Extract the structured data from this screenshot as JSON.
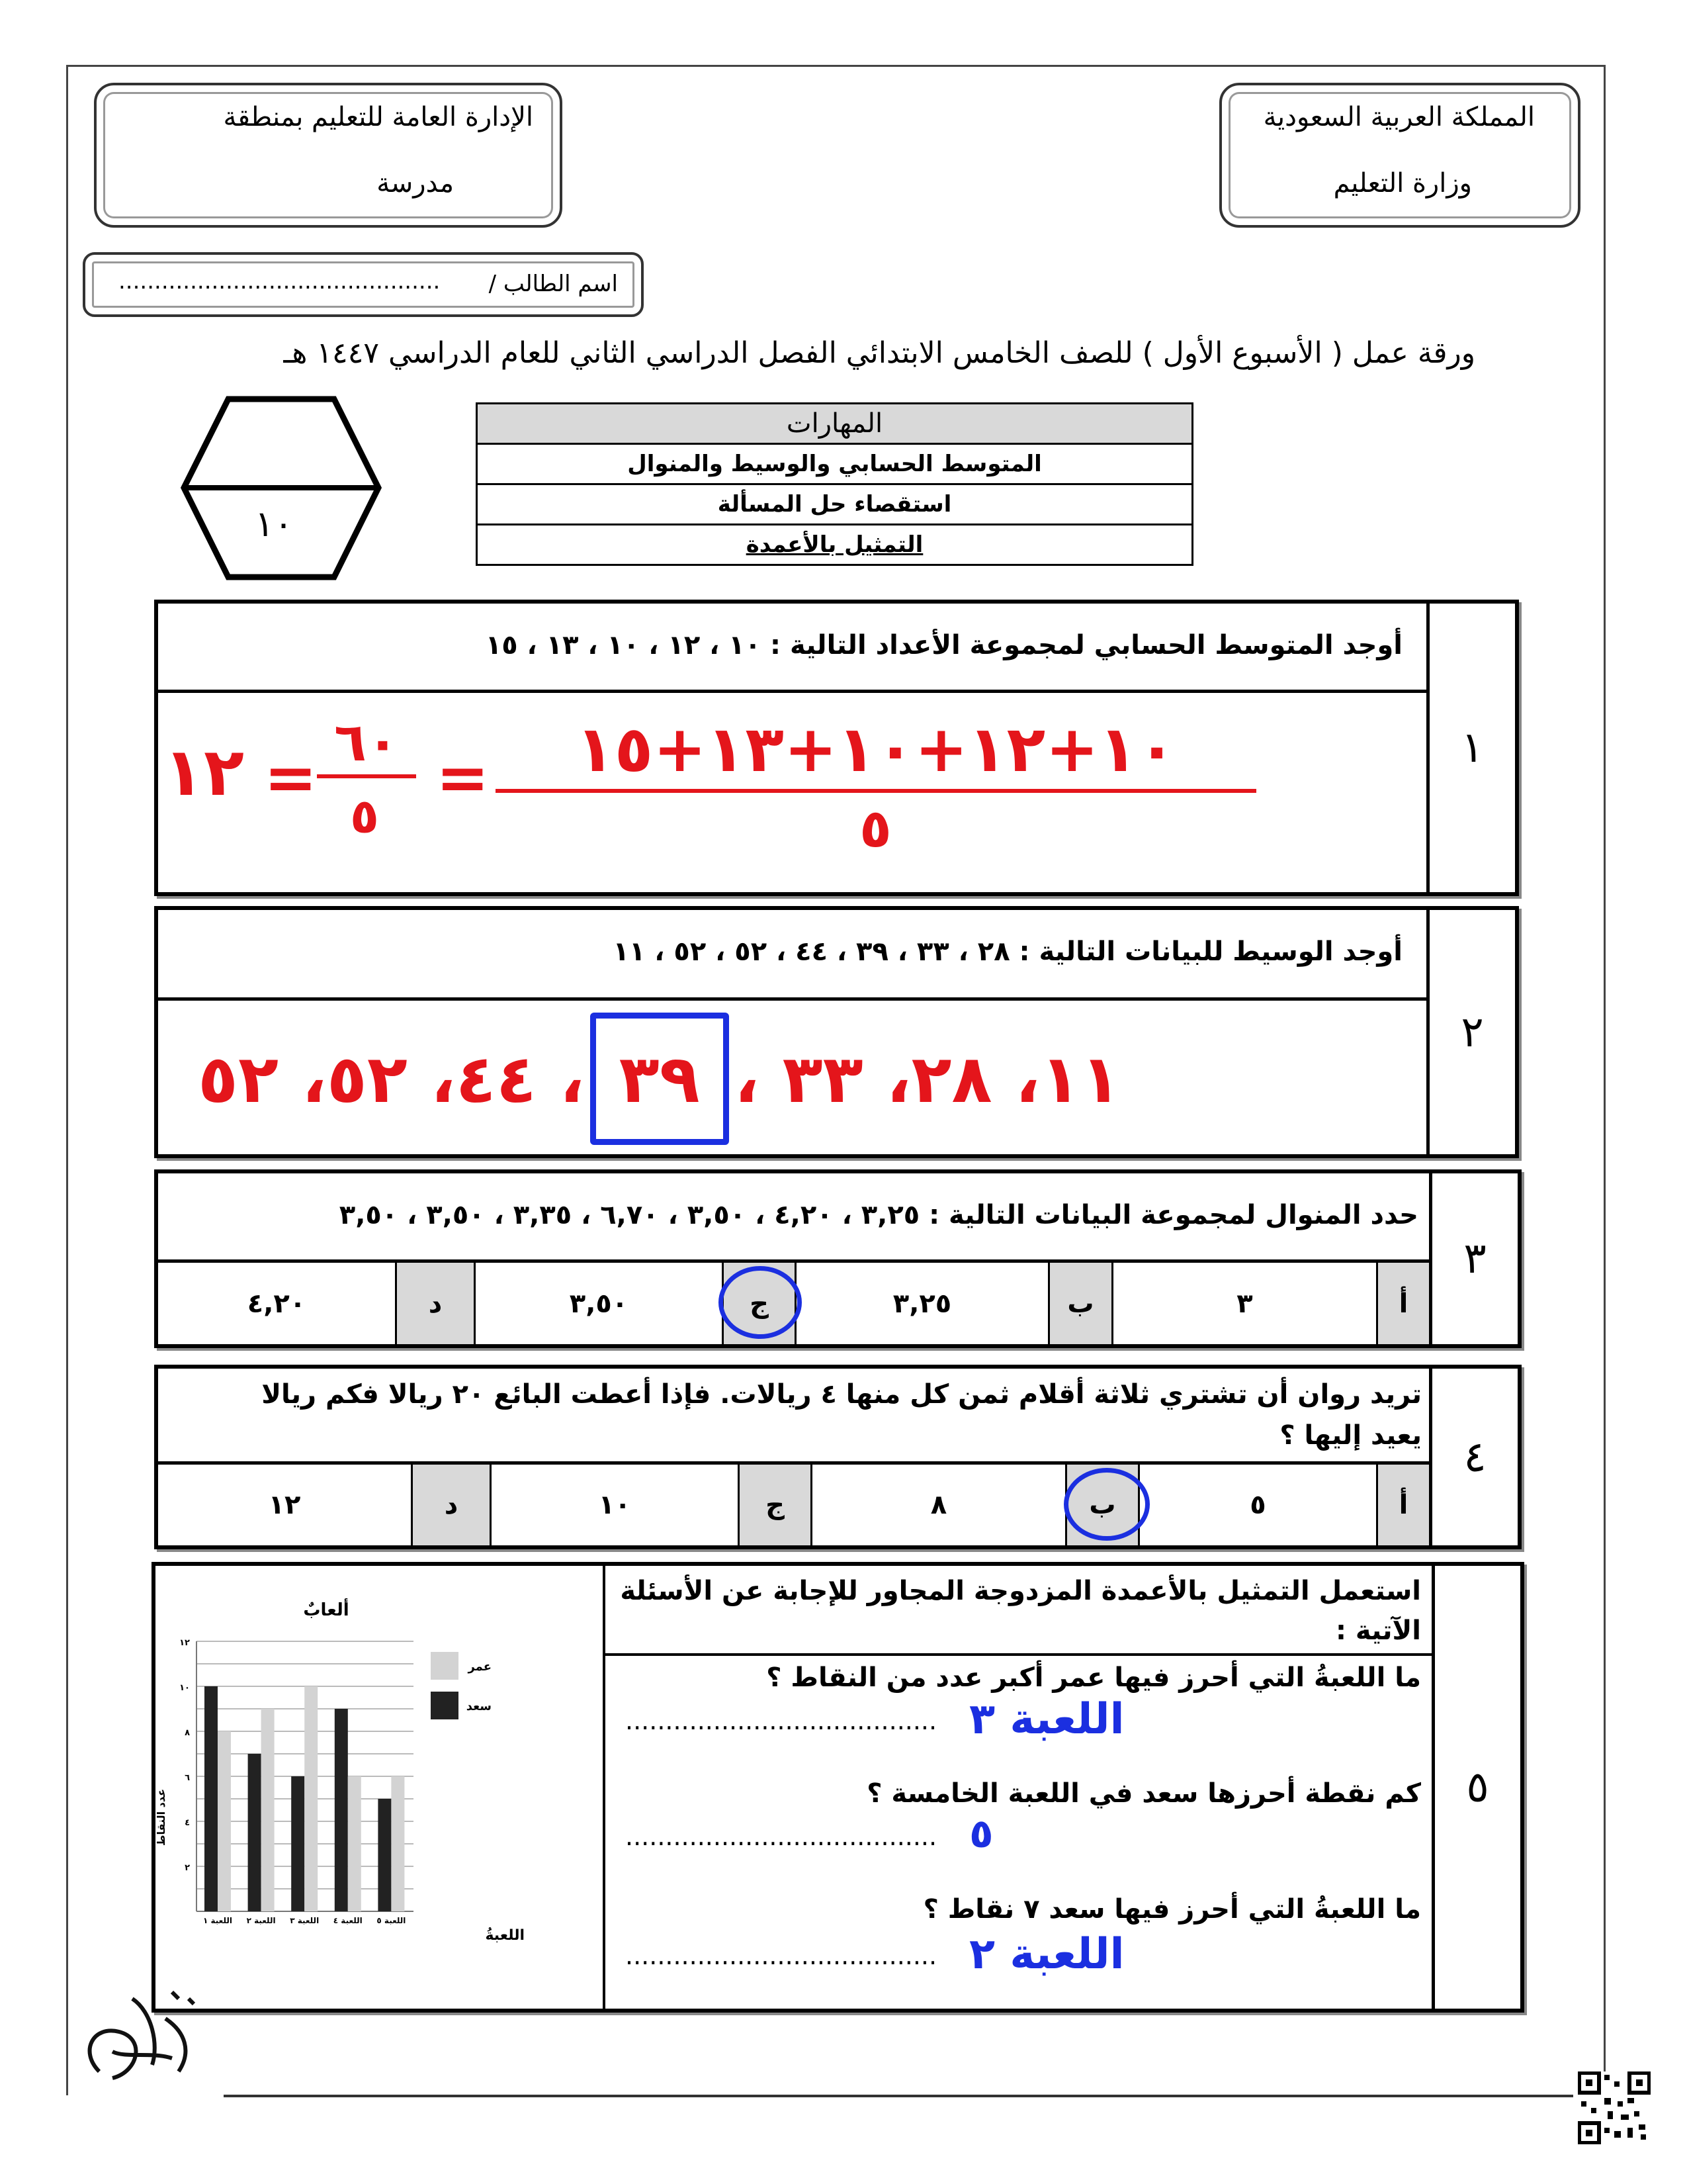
{
  "header": {
    "kingdom": "المملكة العربية السعودية",
    "ministry": "وزارة التعليم",
    "directorate": "الإدارة العامة للتعليم بمنطقة",
    "school": "مدرسة",
    "student_name_label": "اسم الطالب /",
    "student_name_dots": "............................................."
  },
  "title": "ورقة عمل ( الأسبوع الأول ) للصف الخامس الابتدائي الفصل الدراسي الثاني للعام الدراسي ١٤٤٧ هـ",
  "score": "١٠",
  "skills": {
    "header": "المهارات",
    "items": [
      "المتوسط الحسابي والوسيط والمنوال",
      "استقصاء حل المسألة",
      "التمثيل بالأعمدة"
    ]
  },
  "q1": {
    "num": "١",
    "text": "أوجد المتوسط الحسابي لمجموعة الأعداد التالية :  ١٠ ، ١٢ ، ١٠ ، ١٣ ، ١٥",
    "answer": {
      "numerator": "١٠+١٢+١٠+١٣+١٥",
      "denominator": "٥",
      "step_num": "٦٠",
      "step_den": "٥",
      "result": "١٢"
    }
  },
  "q2": {
    "num": "٢",
    "text": "أوجد الوسيط للبيانات التالية :   ٢٨ ، ٣٣ ، ٣٩ ، ٤٤ ، ٥٢ ، ٥٢ ، ١١",
    "answer": {
      "before": "١١، ٢٨، ٣٣ ،",
      "median": "٣٩",
      "after": "، ٤٤، ٥٢، ٥٢"
    }
  },
  "q3": {
    "num": "٣",
    "text": "حدد المنوال لمجموعة البيانات التالية : ٣,٢٥ ، ٤,٢٠ ، ٣,٥٠ ، ٦,٧٠ ، ٣,٣٥ ، ٣,٥٠ ، ٣,٥٠",
    "options": [
      {
        "letter": "أ",
        "value": "٣"
      },
      {
        "letter": "ب",
        "value": "٣,٢٥"
      },
      {
        "letter": "ج",
        "value": "٣,٥٠",
        "circled": true
      },
      {
        "letter": "د",
        "value": "٤,٢٠"
      }
    ]
  },
  "q4": {
    "num": "٤",
    "text": "تريد روان أن تشتري ثلاثة أقلام ثمن كل منها ٤ ريالات. فإذا أعطت البائع ٢٠ ريالا فكم ريالا يعيد إليها ؟",
    "options": [
      {
        "letter": "أ",
        "value": "٥"
      },
      {
        "letter": "ب",
        "value": "٨",
        "circled": true
      },
      {
        "letter": "ج",
        "value": "١٠"
      },
      {
        "letter": "د",
        "value": "١٢"
      }
    ]
  },
  "q5": {
    "num": "٥",
    "intro": "استعمل التمثيل بالأعمدة المزدوجة المجاور للإجابة عن الأسئلة الآتية :",
    "questions": [
      {
        "text": "ما اللعبةُ التي أحرز فيها عمر أكبر عدد من النقاط ؟",
        "answer": "اللعبة ٣"
      },
      {
        "text": "كم نقطة أحرزها سعد في اللعبة الخامسة ؟",
        "answer": "٥"
      },
      {
        "text": "ما اللعبةُ التي أحرز فيها سعد ٧ نقاط ؟",
        "answer": "اللعبة ٢"
      }
    ],
    "dots": "......................................."
  },
  "chart_data": {
    "type": "bar",
    "title": "ألعابٌ",
    "xlabel": "اللعبةُ",
    "ylabel": "عدد النقاط",
    "categories": [
      "اللعبة ١",
      "اللعبة ٢",
      "اللعبة ٣",
      "اللعبة ٤",
      "اللعبة ٥"
    ],
    "series": [
      {
        "name": "سعد",
        "color": "#222222",
        "values": [
          10,
          7,
          6,
          9,
          5
        ]
      },
      {
        "name": "عمر",
        "color": "#d3d3d3",
        "values": [
          8,
          9,
          10,
          6,
          6
        ]
      }
    ],
    "ylim": [
      0,
      12
    ],
    "yticks": [
      "٢",
      "٤",
      "٦",
      "٨",
      "١٠",
      "١٢"
    ],
    "grid": true,
    "legend": "right"
  },
  "colors": {
    "red_ink": "#e4151b",
    "blue_ink": "#1b2fe0",
    "option_shade": "#d9d9d9"
  }
}
